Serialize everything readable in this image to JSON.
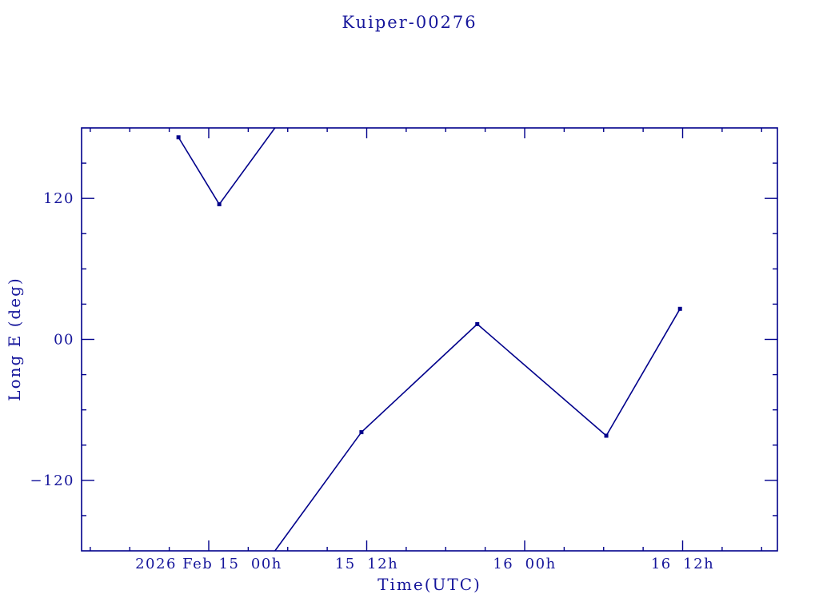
{
  "title": "Kuiper-00276",
  "colors": {
    "text": "#16169b",
    "line": "#00008b"
  },
  "chart_data": {
    "type": "line",
    "title": "Kuiper-00276",
    "xlabel": "Time(UTC)",
    "ylabel": "Long E (deg)",
    "x_unit": "hours since 2026-02-15 00:00 UTC",
    "xlim": [
      -9.66,
      43.2
    ],
    "ylim": [
      -180,
      180
    ],
    "wrap_degrees": 360,
    "grid": false,
    "legend": null,
    "marker": "square",
    "series": [
      {
        "name": "Long E",
        "points": [
          {
            "t": -2.3,
            "lon": 172
          },
          {
            "t": 0.8,
            "lon": 115
          },
          {
            "t": 11.6,
            "lon": -79
          },
          {
            "t": 20.4,
            "lon": 13
          },
          {
            "t": 30.2,
            "lon": -82
          },
          {
            "t": 35.8,
            "lon": 26
          }
        ]
      }
    ],
    "x_major_ticks": [
      {
        "t": 0,
        "label": "2026 Feb 15  00h"
      },
      {
        "t": 12,
        "label": "15  12h"
      },
      {
        "t": 24,
        "label": "16  00h"
      },
      {
        "t": 36,
        "label": "16  12h"
      }
    ],
    "x_minor_step_hours": 3,
    "x_minor_range_hours": [
      -9,
      42
    ],
    "y_major_ticks": [
      {
        "v": 120,
        "label": "120"
      },
      {
        "v": 0,
        "label": "00"
      },
      {
        "v": -120,
        "label": "−120"
      }
    ],
    "y_minor_step_deg": 30,
    "y_minor_range_deg": [
      -150,
      150
    ]
  }
}
